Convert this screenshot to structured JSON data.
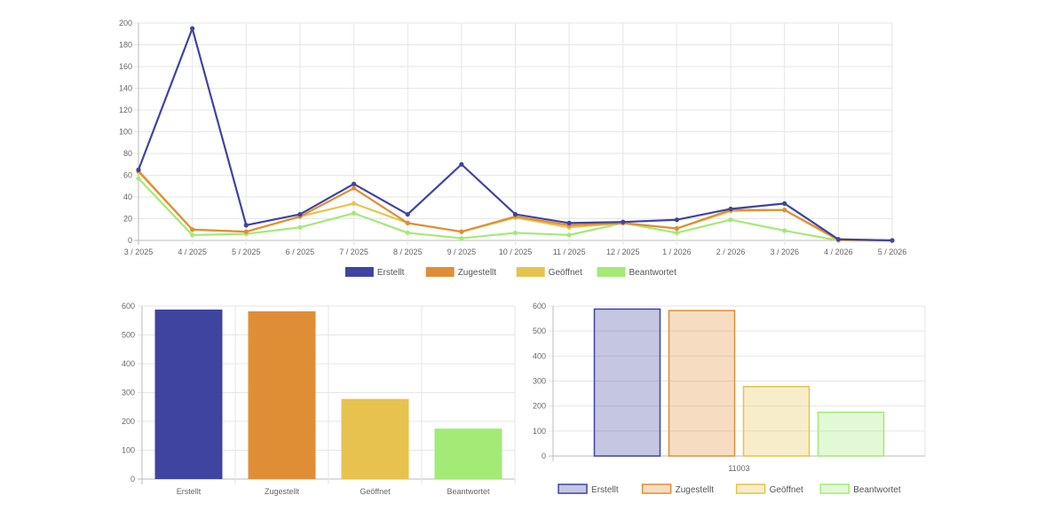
{
  "colors": {
    "erstellt": "#3f44a0",
    "zugestellt": "#e08e35",
    "geoeffnet": "#e8c24e",
    "beantwortet": "#a3ea76"
  },
  "chart_data": [
    {
      "type": "line",
      "categories": [
        "3 / 2025",
        "4 / 2025",
        "5 / 2025",
        "6 / 2025",
        "7 / 2025",
        "8 / 2025",
        "9 / 2025",
        "10 / 2025",
        "11 / 2025",
        "12 / 2025",
        "1 / 2026",
        "2 / 2026",
        "3 / 2026",
        "4 / 2026",
        "5 / 2026"
      ],
      "ylim": [
        0,
        200
      ],
      "yticks": [
        0,
        20,
        40,
        60,
        80,
        100,
        120,
        140,
        160,
        180,
        200
      ],
      "grid": true,
      "legend_position": "bottom",
      "series": [
        {
          "name": "Erstellt",
          "color": "#3f44a0",
          "values": [
            65,
            195,
            14,
            24,
            52,
            24,
            70,
            24,
            16,
            17,
            19,
            29,
            34,
            1,
            0
          ]
        },
        {
          "name": "Zugestellt",
          "color": "#e08e35",
          "values": [
            64,
            10,
            8,
            22,
            48,
            16,
            8,
            22,
            14,
            16,
            11,
            28,
            28,
            1,
            0
          ]
        },
        {
          "name": "Geöffnet",
          "color": "#e8c24e",
          "values": [
            63,
            10,
            8,
            22,
            34,
            16,
            8,
            21,
            12,
            16,
            11,
            27,
            28,
            0,
            0
          ]
        },
        {
          "name": "Beantwortet",
          "color": "#a3ea76",
          "values": [
            57,
            5,
            6,
            12,
            25,
            7,
            2,
            7,
            5,
            16,
            7,
            19,
            9,
            0,
            0
          ]
        }
      ]
    },
    {
      "type": "bar",
      "categories": [
        "Erstellt",
        "Zugestellt",
        "Geöffnet",
        "Beantwortet"
      ],
      "values": [
        588,
        582,
        278,
        175
      ],
      "colors": [
        "#3f44a0",
        "#e08e35",
        "#e8c24e",
        "#a3ea76"
      ],
      "ylim": [
        0,
        600
      ],
      "yticks": [
        0,
        100,
        200,
        300,
        400,
        500,
        600
      ],
      "grid": true
    },
    {
      "type": "bar",
      "categories": [
        "11003"
      ],
      "ylim": [
        0,
        600
      ],
      "yticks": [
        0,
        100,
        200,
        300,
        400,
        500,
        600
      ],
      "grid": true,
      "legend_position": "bottom",
      "series": [
        {
          "name": "Erstellt",
          "color": "#3f44a0",
          "values": [
            588
          ]
        },
        {
          "name": "Zugestellt",
          "color": "#e08e35",
          "values": [
            582
          ]
        },
        {
          "name": "Geöffnet",
          "color": "#e8c24e",
          "values": [
            278
          ]
        },
        {
          "name": "Beantwortet",
          "color": "#a3ea76",
          "values": [
            175
          ]
        }
      ]
    }
  ]
}
